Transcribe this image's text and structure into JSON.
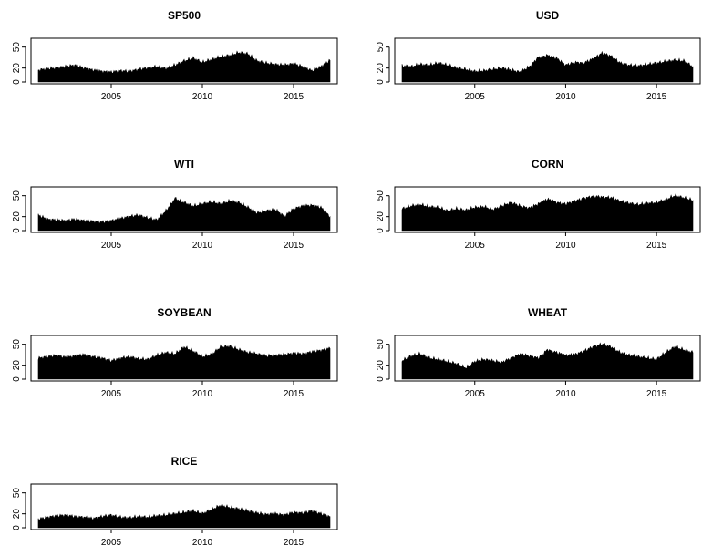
{
  "colors": {
    "background": "#ffffff",
    "series": "#000000",
    "axis": "#000000"
  },
  "chart_data": [
    {
      "type": "area",
      "title": "SP500",
      "xlabel": "",
      "ylabel": "",
      "xlim": [
        2001,
        2017
      ],
      "ylim": [
        0,
        60
      ],
      "x_ticks": [
        "2005",
        "2010",
        "2015"
      ],
      "y_ticks": [
        "0",
        "20",
        "50"
      ],
      "grid": false,
      "series": [
        {
          "x": [
            2001,
            2001.5,
            2002,
            2002.5,
            2003,
            2003.5,
            2004,
            2004.5,
            2005,
            2005.5,
            2006,
            2006.5,
            2007,
            2007.5,
            2008,
            2008.5,
            2009,
            2009.5,
            2010,
            2010.5,
            2011,
            2011.5,
            2012,
            2012.5,
            2013,
            2013.5,
            2014,
            2014.5,
            2015,
            2015.5,
            2016,
            2016.5,
            2017
          ],
          "values": [
            17,
            19,
            20,
            22,
            24,
            20,
            17,
            15,
            14,
            16,
            15,
            18,
            20,
            22,
            19,
            24,
            30,
            34,
            28,
            32,
            36,
            38,
            42,
            40,
            30,
            27,
            25,
            24,
            26,
            22,
            16,
            22,
            31
          ]
        }
      ]
    },
    {
      "type": "area",
      "title": "USD",
      "xlabel": "",
      "ylabel": "",
      "xlim": [
        2001,
        2017
      ],
      "ylim": [
        0,
        60
      ],
      "x_ticks": [
        "2005",
        "2010",
        "2015"
      ],
      "y_ticks": [
        "0",
        "20",
        "50"
      ],
      "grid": false,
      "series": [
        {
          "x": [
            2001,
            2001.5,
            2002,
            2002.5,
            2003,
            2003.5,
            2004,
            2004.5,
            2005,
            2005.5,
            2006,
            2006.5,
            2007,
            2007.5,
            2008,
            2008.5,
            2009,
            2009.5,
            2010,
            2010.5,
            2011,
            2011.5,
            2012,
            2012.5,
            2013,
            2013.5,
            2014,
            2014.5,
            2015,
            2015.5,
            2016,
            2016.5,
            2017
          ],
          "values": [
            23,
            22,
            25,
            24,
            27,
            24,
            20,
            18,
            15,
            16,
            18,
            20,
            17,
            14,
            22,
            35,
            38,
            34,
            24,
            28,
            27,
            33,
            41,
            37,
            27,
            24,
            23,
            25,
            27,
            29,
            31,
            30,
            22
          ]
        }
      ]
    },
    {
      "type": "area",
      "title": "WTI",
      "xlabel": "",
      "ylabel": "",
      "xlim": [
        2001,
        2017
      ],
      "ylim": [
        0,
        60
      ],
      "x_ticks": [
        "2005",
        "2010",
        "2015"
      ],
      "y_ticks": [
        "0",
        "20",
        "50"
      ],
      "grid": false,
      "series": [
        {
          "x": [
            2001,
            2001.5,
            2002,
            2002.5,
            2003,
            2003.5,
            2004,
            2004.5,
            2005,
            2005.5,
            2006,
            2006.5,
            2007,
            2007.5,
            2008,
            2008.5,
            2009,
            2009.5,
            2010,
            2010.5,
            2011,
            2011.5,
            2012,
            2012.5,
            2013,
            2013.5,
            2014,
            2014.5,
            2015,
            2015.5,
            2016,
            2016.5,
            2017
          ],
          "values": [
            22,
            16,
            15,
            14,
            16,
            14,
            13,
            12,
            14,
            17,
            20,
            22,
            18,
            15,
            28,
            46,
            40,
            35,
            38,
            41,
            38,
            42,
            40,
            33,
            25,
            28,
            30,
            20,
            31,
            35,
            36,
            33,
            20
          ]
        }
      ]
    },
    {
      "type": "area",
      "title": "CORN",
      "xlabel": "",
      "ylabel": "",
      "xlim": [
        2001,
        2017
      ],
      "ylim": [
        0,
        60
      ],
      "x_ticks": [
        "2005",
        "2010",
        "2015"
      ],
      "y_ticks": [
        "0",
        "20",
        "50"
      ],
      "grid": false,
      "series": [
        {
          "x": [
            2001,
            2001.5,
            2002,
            2002.5,
            2003,
            2003.5,
            2004,
            2004.5,
            2005,
            2005.5,
            2006,
            2006.5,
            2007,
            2007.5,
            2008,
            2008.5,
            2009,
            2009.5,
            2010,
            2010.5,
            2011,
            2011.5,
            2012,
            2012.5,
            2013,
            2013.5,
            2014,
            2014.5,
            2015,
            2015.5,
            2016,
            2016.5,
            2017
          ],
          "values": [
            31,
            35,
            37,
            34,
            33,
            28,
            31,
            29,
            33,
            34,
            30,
            35,
            40,
            35,
            32,
            38,
            45,
            40,
            38,
            42,
            46,
            49,
            48,
            47,
            42,
            39,
            37,
            39,
            40,
            44,
            50,
            47,
            43
          ]
        }
      ]
    },
    {
      "type": "area",
      "title": "SOYBEAN",
      "xlabel": "",
      "ylabel": "",
      "xlim": [
        2001,
        2017
      ],
      "ylim": [
        0,
        60
      ],
      "x_ticks": [
        "2005",
        "2010",
        "2015"
      ],
      "y_ticks": [
        "0",
        "20",
        "50"
      ],
      "grid": false,
      "series": [
        {
          "x": [
            2001,
            2001.5,
            2002,
            2002.5,
            2003,
            2003.5,
            2004,
            2004.5,
            2005,
            2005.5,
            2006,
            2006.5,
            2007,
            2007.5,
            2008,
            2008.5,
            2009,
            2009.5,
            2010,
            2010.5,
            2011,
            2011.5,
            2012,
            2012.5,
            2013,
            2013.5,
            2014,
            2014.5,
            2015,
            2015.5,
            2016,
            2016.5,
            2017
          ],
          "values": [
            30,
            32,
            34,
            31,
            33,
            35,
            32,
            30,
            26,
            30,
            32,
            29,
            28,
            34,
            38,
            36,
            46,
            40,
            32,
            35,
            46,
            47,
            42,
            38,
            36,
            33,
            34,
            35,
            37,
            36,
            39,
            41,
            44
          ]
        }
      ]
    },
    {
      "type": "area",
      "title": "WHEAT",
      "xlabel": "",
      "ylabel": "",
      "xlim": [
        2001,
        2017
      ],
      "ylim": [
        0,
        60
      ],
      "x_ticks": [
        "2005",
        "2010",
        "2015"
      ],
      "y_ticks": [
        "0",
        "20",
        "50"
      ],
      "grid": false,
      "series": [
        {
          "x": [
            2001,
            2001.5,
            2002,
            2002.5,
            2003,
            2003.5,
            2004,
            2004.5,
            2005,
            2005.5,
            2006,
            2006.5,
            2007,
            2007.5,
            2008,
            2008.5,
            2009,
            2009.5,
            2010,
            2010.5,
            2011,
            2011.5,
            2012,
            2012.5,
            2013,
            2013.5,
            2014,
            2014.5,
            2015,
            2015.5,
            2016,
            2016.5,
            2017
          ],
          "values": [
            26,
            33,
            36,
            30,
            28,
            25,
            22,
            16,
            25,
            28,
            26,
            24,
            30,
            36,
            33,
            30,
            42,
            38,
            34,
            35,
            40,
            46,
            50,
            46,
            38,
            34,
            32,
            30,
            28,
            38,
            46,
            42,
            38
          ]
        }
      ]
    },
    {
      "type": "area",
      "title": "RICE",
      "xlabel": "",
      "ylabel": "",
      "xlim": [
        2001,
        2017
      ],
      "ylim": [
        0,
        60
      ],
      "x_ticks": [
        "2005",
        "2010",
        "2015"
      ],
      "y_ticks": [
        "0",
        "20",
        "50"
      ],
      "grid": false,
      "series": [
        {
          "x": [
            2001,
            2001.5,
            2002,
            2002.5,
            2003,
            2003.5,
            2004,
            2004.5,
            2005,
            2005.5,
            2006,
            2006.5,
            2007,
            2007.5,
            2008,
            2008.5,
            2009,
            2009.5,
            2010,
            2010.5,
            2011,
            2011.5,
            2012,
            2012.5,
            2013,
            2013.5,
            2014,
            2014.5,
            2015,
            2015.5,
            2016,
            2016.5,
            2017
          ],
          "values": [
            12,
            15,
            17,
            18,
            16,
            15,
            13,
            16,
            18,
            15,
            14,
            16,
            15,
            17,
            18,
            20,
            22,
            24,
            20,
            26,
            32,
            29,
            27,
            24,
            21,
            19,
            20,
            18,
            22,
            21,
            24,
            20,
            16
          ]
        }
      ]
    }
  ]
}
